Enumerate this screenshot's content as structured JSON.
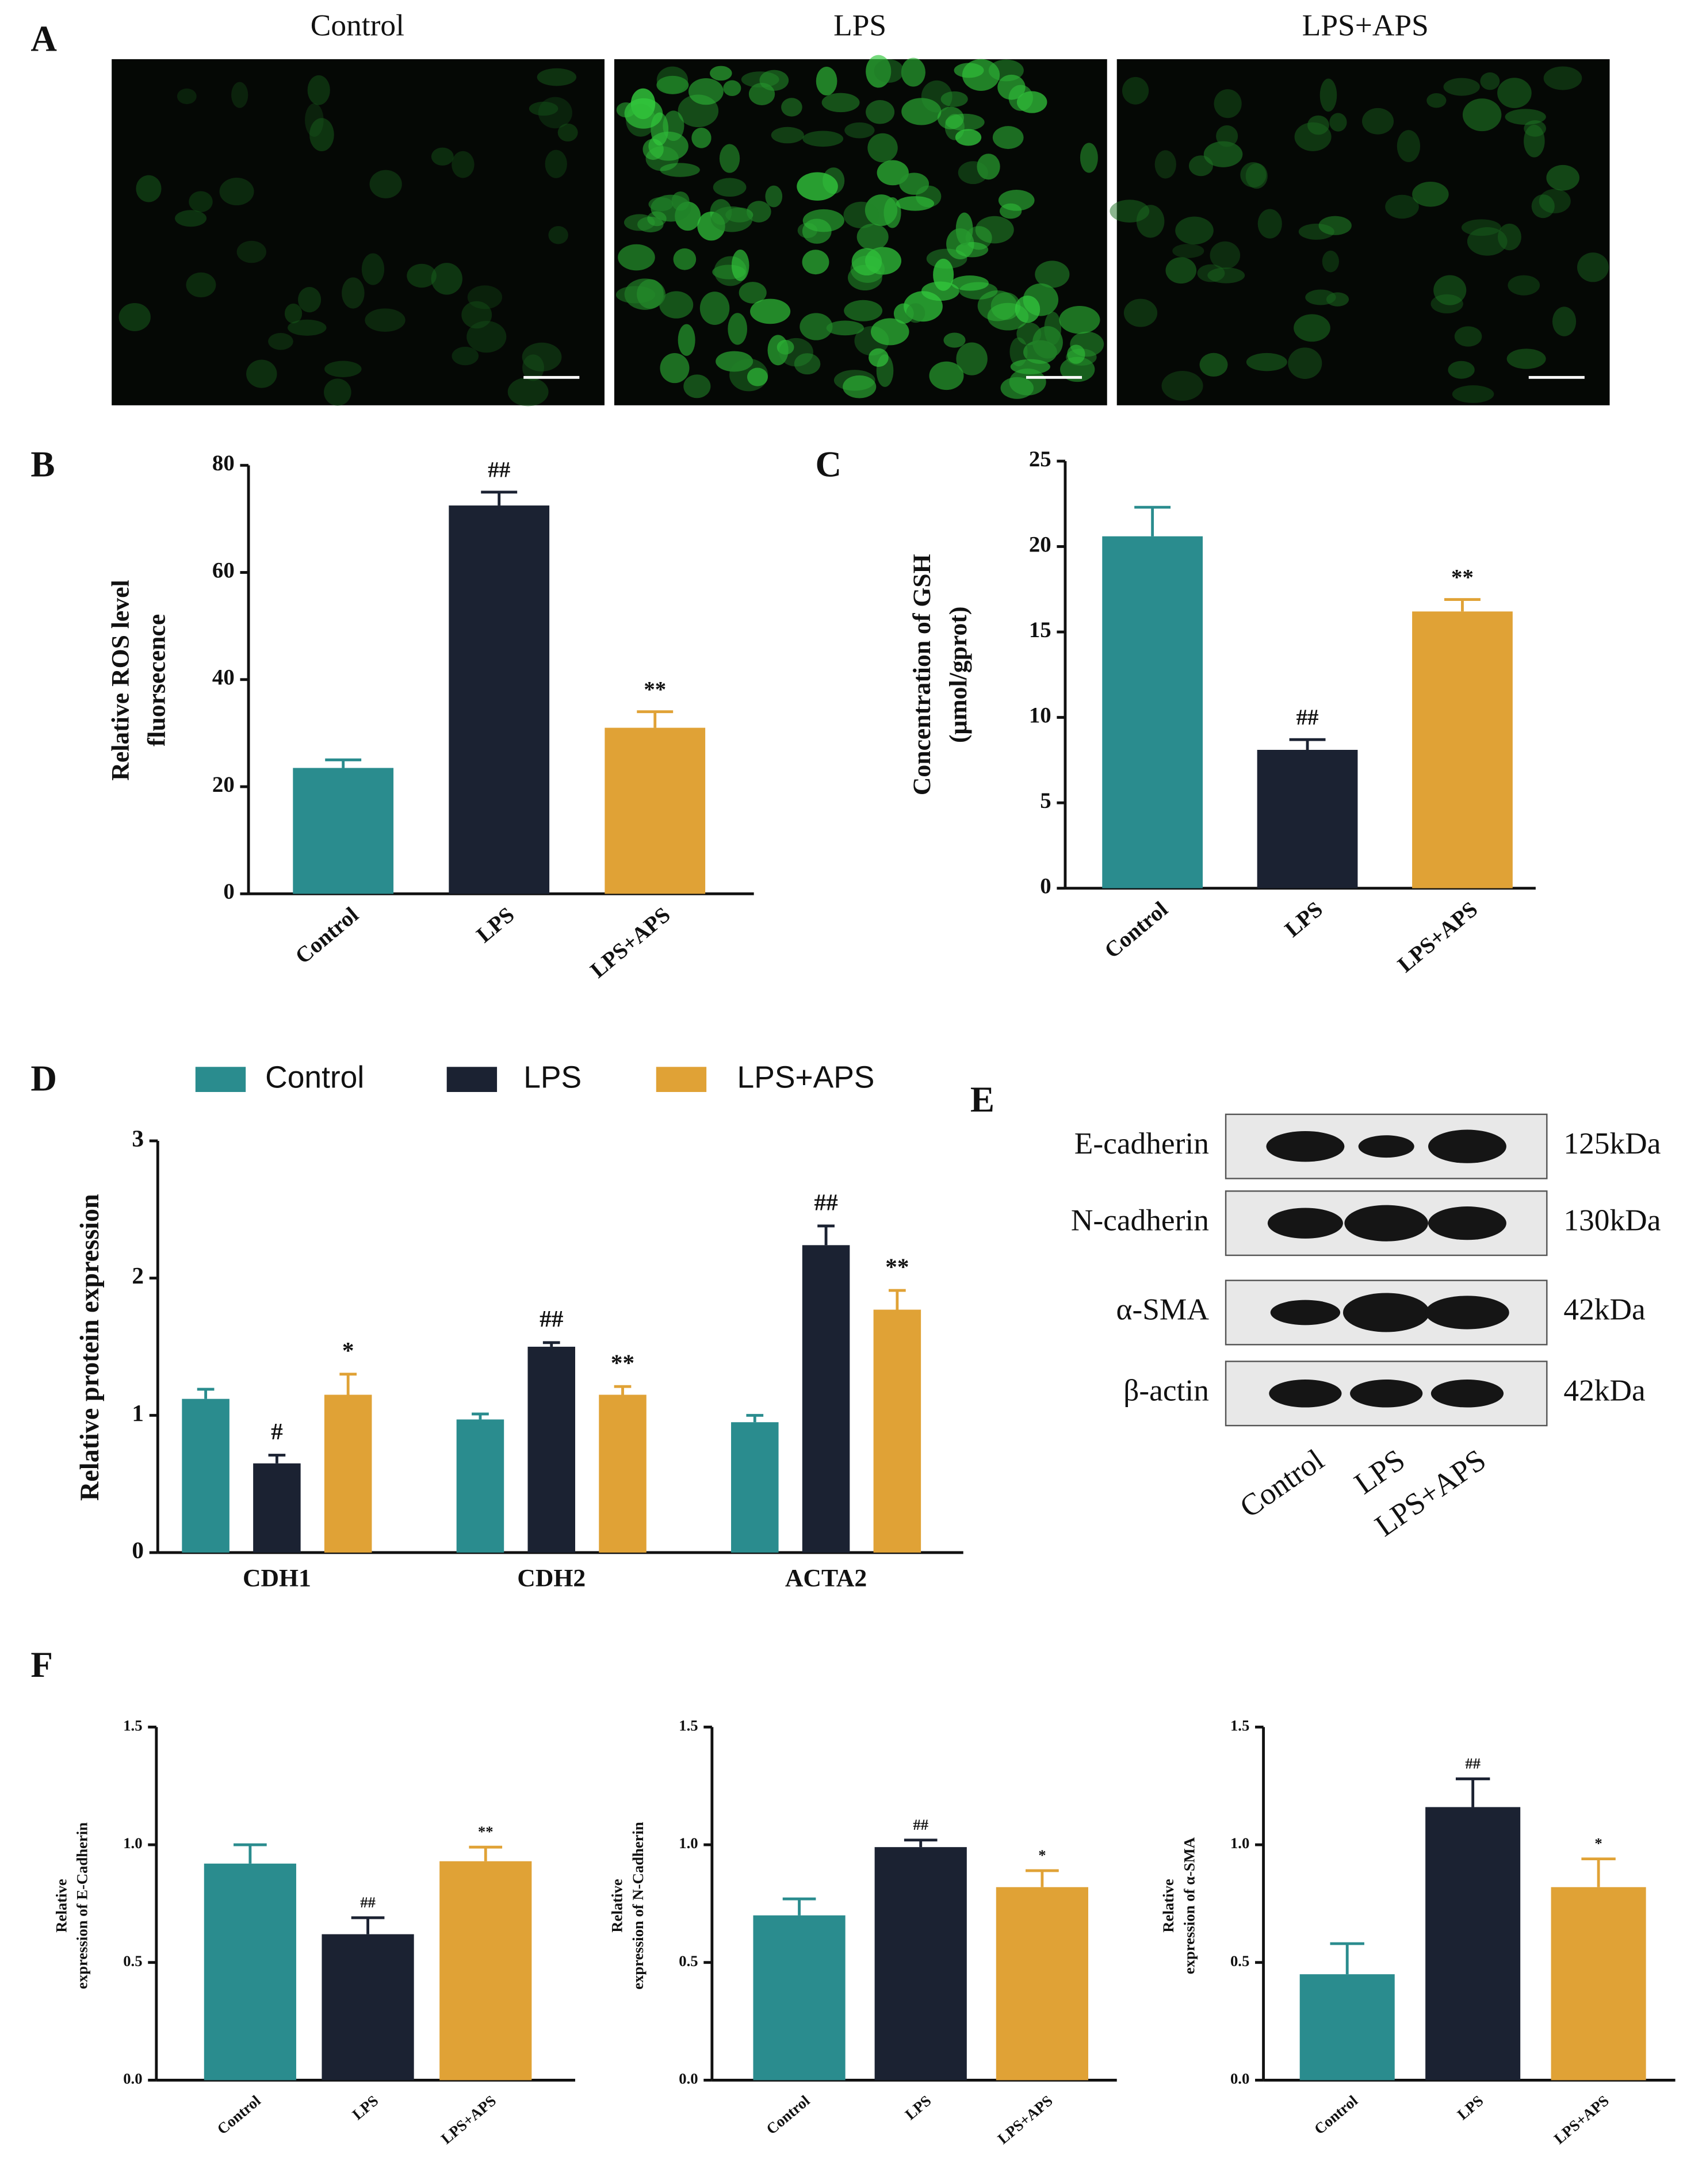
{
  "panel_labels": [
    "A",
    "B",
    "C",
    "D",
    "E",
    "F"
  ],
  "panel_a": {
    "titles": [
      "Control",
      "LPS",
      "LPS+APS"
    ]
  },
  "panel_e": {
    "rows": [
      {
        "label": "E-cadherin",
        "size": "125kDa"
      },
      {
        "label": "N-cadherin",
        "size": "130kDa"
      },
      {
        "label": "α-SMA",
        "size": "42kDa"
      },
      {
        "label": "β-actin",
        "size": "42kDa"
      }
    ],
    "lanes": [
      "Control",
      "LPS",
      "LPS+APS"
    ]
  },
  "chart_data": [
    {
      "type": "bar",
      "ylabel": [
        "Relative ROS level",
        "fluorsecence"
      ],
      "categories": [
        "Control",
        "LPS",
        "LPS+APS"
      ],
      "values": [
        23.5,
        72.5,
        31
      ],
      "errors": [
        1.5,
        2.5,
        3
      ],
      "markers": [
        null,
        "##",
        "**"
      ],
      "colors": [
        "#2a8c8e",
        "#1b2232",
        "#e0a236"
      ],
      "ylim": [
        0,
        80
      ],
      "yticks": [
        0,
        20,
        40,
        60,
        80
      ]
    },
    {
      "type": "bar",
      "ylabel": [
        "Concentration of GSH",
        "(μmol/gprot)"
      ],
      "categories": [
        "Control",
        "LPS",
        "LPS+APS"
      ],
      "values": [
        20.6,
        8.1,
        16.2
      ],
      "errors": [
        1.7,
        0.6,
        0.7
      ],
      "markers": [
        null,
        "##",
        "**"
      ],
      "colors": [
        "#2a8c8e",
        "#1b2232",
        "#e0a236"
      ],
      "ylim": [
        0,
        25
      ],
      "yticks": [
        0,
        5,
        10,
        15,
        20,
        25
      ]
    },
    {
      "type": "grouped_bar",
      "ylabel": [
        "Relative protein expression"
      ],
      "categories": [
        "CDH1",
        "CDH2",
        "ACTA2"
      ],
      "series": [
        {
          "name": "Control",
          "color": "#2a8c8e",
          "values": [
            1.12,
            0.97,
            0.95
          ],
          "errors": [
            0.07,
            0.04,
            0.05
          ],
          "markers": [
            null,
            null,
            null
          ]
        },
        {
          "name": "LPS",
          "color": "#1b2232",
          "values": [
            0.65,
            1.5,
            2.24
          ],
          "errors": [
            0.06,
            0.03,
            0.14
          ],
          "markers": [
            "#",
            "##",
            "##"
          ]
        },
        {
          "name": "LPS+APS",
          "color": "#e0a236",
          "values": [
            1.15,
            1.15,
            1.77
          ],
          "errors": [
            0.15,
            0.06,
            0.14
          ],
          "markers": [
            "*",
            "**",
            "**"
          ]
        }
      ],
      "ylim": [
        0,
        3
      ],
      "yticks": [
        0,
        1,
        2,
        3
      ]
    },
    {
      "type": "bar",
      "ylabel": [
        "Relative",
        "expression of E-Cadherin"
      ],
      "categories": [
        "Control",
        "LPS",
        "LPS+APS"
      ],
      "values": [
        0.92,
        0.62,
        0.93
      ],
      "errors": [
        0.08,
        0.07,
        0.06
      ],
      "markers": [
        null,
        "##",
        "**"
      ],
      "colors": [
        "#2a8c8e",
        "#1b2232",
        "#e0a236"
      ],
      "ylim": [
        0,
        1.5
      ],
      "yticks": [
        {
          "value": 0,
          "label": "0.0"
        },
        {
          "value": 0.5,
          "label": "0.5"
        },
        {
          "value": 1,
          "label": "1.0"
        },
        {
          "value": 1.5,
          "label": "1.5"
        }
      ]
    },
    {
      "type": "bar",
      "ylabel": [
        "Relative",
        "expression of N-Cadherin"
      ],
      "categories": [
        "Control",
        "LPS",
        "LPS+APS"
      ],
      "values": [
        0.7,
        0.99,
        0.82
      ],
      "errors": [
        0.07,
        0.03,
        0.07
      ],
      "markers": [
        null,
        "##",
        "*"
      ],
      "colors": [
        "#2a8c8e",
        "#1b2232",
        "#e0a236"
      ],
      "ylim": [
        0,
        1.5
      ],
      "yticks": [
        {
          "value": 0,
          "label": "0.0"
        },
        {
          "value": 0.5,
          "label": "0.5"
        },
        {
          "value": 1,
          "label": "1.0"
        },
        {
          "value": 1.5,
          "label": "1.5"
        }
      ]
    },
    {
      "type": "bar",
      "ylabel": [
        "Relative",
        "expression of α-SMA"
      ],
      "categories": [
        "Control",
        "LPS",
        "LPS+APS"
      ],
      "values": [
        0.45,
        1.16,
        0.82
      ],
      "errors": [
        0.13,
        0.12,
        0.12
      ],
      "markers": [
        null,
        "##",
        "*"
      ],
      "colors": [
        "#2a8c8e",
        "#1b2232",
        "#e0a236"
      ],
      "ylim": [
        0,
        1.5
      ],
      "yticks": [
        {
          "value": 0,
          "label": "0.0"
        },
        {
          "value": 0.5,
          "label": "0.5"
        },
        {
          "value": 1,
          "label": "1.0"
        },
        {
          "value": 1.5,
          "label": "1.5"
        }
      ]
    }
  ]
}
